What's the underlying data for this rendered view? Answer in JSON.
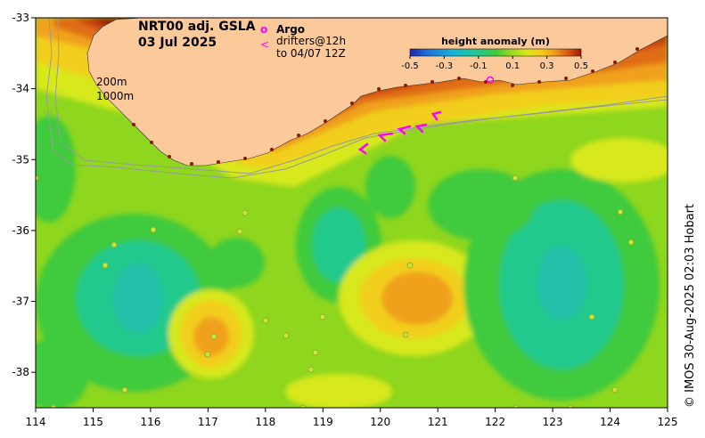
{
  "title": {
    "product": "NRT00 adj. GSLA",
    "date": "03 Jul 2025"
  },
  "legend": {
    "argo_symbol": "o",
    "argo_label": "Argo",
    "drifter_symbol": "<",
    "drifter_label_line1": "drifters@12h",
    "drifter_label_line2": "to 04/07 12Z",
    "isobath_200": "200m",
    "isobath_1000": "1000m"
  },
  "colorbar": {
    "title": "height anomaly (m)",
    "ticks": [
      "-0.5",
      "-0.3",
      "-0.1",
      "0.1",
      "0.3",
      "0.5"
    ],
    "range": [
      -0.5,
      0.5
    ],
    "colors": [
      "#1f23a8",
      "#1c6fd8",
      "#18b4d6",
      "#22c98c",
      "#3fca3c",
      "#8fd61e",
      "#d7e81a",
      "#f2cf1c",
      "#f0a11a",
      "#e06d12",
      "#c8440c",
      "#9c1a06"
    ]
  },
  "axes": {
    "lon_ticks": [
      "114",
      "115",
      "116",
      "117",
      "118",
      "119",
      "120",
      "121",
      "122",
      "123",
      "124",
      "125"
    ],
    "lat_ticks": [
      "-33",
      "-34",
      "-35",
      "-36",
      "-37",
      "-38"
    ],
    "lon_range": [
      114,
      125
    ],
    "lat_range": [
      -38.5,
      -33
    ]
  },
  "credit": "© IMOS 30-Aug-2025 02:03 Hobart",
  "colors": {
    "land": "#fbc99a",
    "coast_dots": "#8a1a08",
    "drifter": "#ff00ff",
    "argo": "#ff00ff",
    "isobath": "#9a9a9a"
  }
}
